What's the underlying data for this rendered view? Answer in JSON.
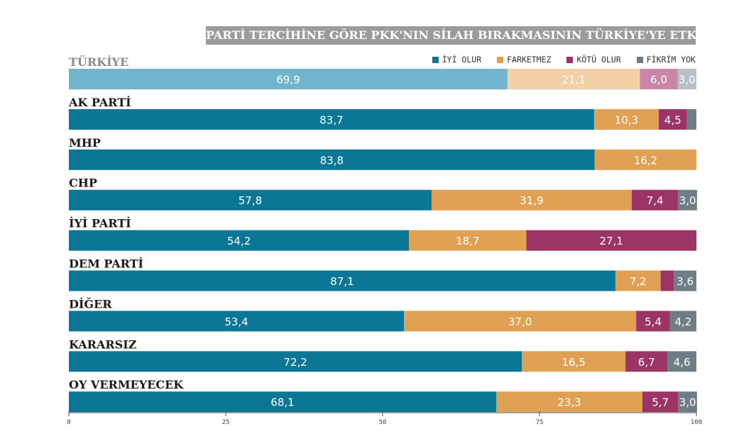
{
  "title": "PARTİ TERCİHİNE GÖRE PKK'NIN SİLAH BIRAKMASININ TÜRKİYE'YE ETKİSİ",
  "legend": [
    {
      "name": "İYİ OLUR",
      "color": "#0b7696"
    },
    {
      "name": "FARKETMEZ",
      "color": "#e1a155"
    },
    {
      "name": "KÖTÜ OLUR",
      "color": "#9b3566"
    },
    {
      "name": "FİKRİM YOK",
      "color": "#6f7e86"
    }
  ],
  "chart_data": {
    "type": "bar",
    "orientation": "horizontal-stacked",
    "title": "PARTİ TERCİHİNE GÖRE PKK'NIN SİLAH BIRAKMASININ TÜRKİYE'YE ETKİSİ",
    "xlim": [
      0,
      100
    ],
    "xticks": [
      "0",
      "25",
      "50",
      "75",
      "100"
    ],
    "categories": [
      "TÜRKİYE",
      "AK PARTİ",
      "MHP",
      "CHP",
      "İYİ PARTİ",
      "DEM PARTİ",
      "DİĞER",
      "KARARSIZ",
      "OY VERMEYECEK"
    ],
    "series": [
      {
        "name": "İYİ OLUR",
        "color": "#0b7696",
        "light_color": "#72b3cd",
        "values": [
          69.9,
          83.7,
          83.8,
          57.8,
          54.2,
          87.1,
          53.4,
          72.2,
          68.1
        ],
        "labels": [
          "69,9",
          "83,7",
          "83,8",
          "57,8",
          "54,2",
          "87,1",
          "53,4",
          "72,2",
          "68,1"
        ]
      },
      {
        "name": "FARKETMEZ",
        "color": "#e1a155",
        "light_color": "#f3d0a5",
        "values": [
          21.1,
          10.3,
          16.2,
          31.9,
          18.7,
          7.2,
          37.0,
          16.5,
          23.3
        ],
        "labels": [
          "21,1",
          "10,3",
          "16,2",
          "31,9",
          "18,7",
          "7,2",
          "37,0",
          "16,5",
          "23,3"
        ]
      },
      {
        "name": "KÖTÜ OLUR",
        "color": "#9b3566",
        "light_color": "#c986a8",
        "values": [
          6.0,
          4.5,
          0,
          7.4,
          27.1,
          2.1,
          5.4,
          6.7,
          5.7
        ],
        "labels": [
          "6,0",
          "4,5",
          "",
          "7,4",
          "27,1",
          "",
          "5,4",
          "6,7",
          "5,7"
        ]
      },
      {
        "name": "FİKRİM YOK",
        "color": "#6f7e86",
        "light_color": "#b8c0c5",
        "values": [
          3.0,
          1.5,
          0,
          3.0,
          0,
          3.6,
          4.2,
          4.6,
          3.0
        ],
        "labels": [
          "3,0",
          "",
          "",
          "3,0",
          "",
          "3,6",
          "4,2",
          "4,6",
          "3,0"
        ]
      }
    ]
  }
}
